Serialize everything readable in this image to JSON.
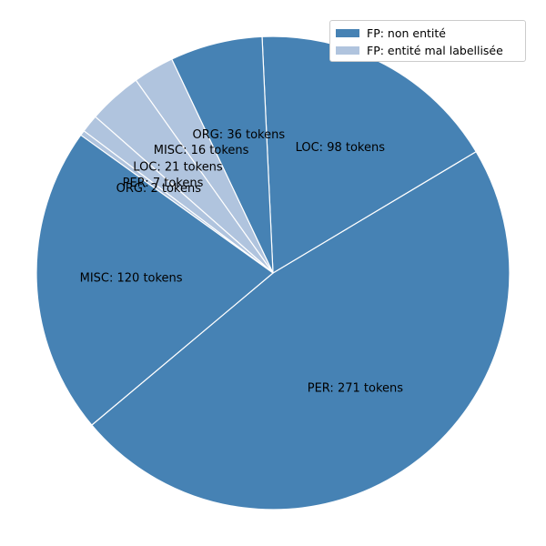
{
  "chart_data": {
    "type": "pie",
    "title": "",
    "legend": {
      "placement": "top-right",
      "entries": [
        {
          "label": "FP: non entité",
          "color": "#4682b4"
        },
        {
          "label": "FP: entité mal labellisée",
          "color": "#b0c4de"
        }
      ]
    },
    "slices": [
      {
        "label": "PER: 271 tokens",
        "value": 271,
        "group": 0
      },
      {
        "label": "LOC: 98 tokens",
        "value": 98,
        "group": 0
      },
      {
        "label": "ORG: 36 tokens",
        "value": 36,
        "group": 0
      },
      {
        "label": "MISC: 16 tokens",
        "value": 16,
        "group": 1
      },
      {
        "label": "LOC: 21 tokens",
        "value": 21,
        "group": 1
      },
      {
        "label": "PER: 7 tokens",
        "value": 7,
        "group": 1
      },
      {
        "label": "ORG: 2 tokens",
        "value": 2,
        "group": 1
      },
      {
        "label": "MISC: 120 tokens",
        "value": 120,
        "group": 0
      }
    ],
    "start_angle_deg": -140,
    "direction": "counterclockwise"
  }
}
